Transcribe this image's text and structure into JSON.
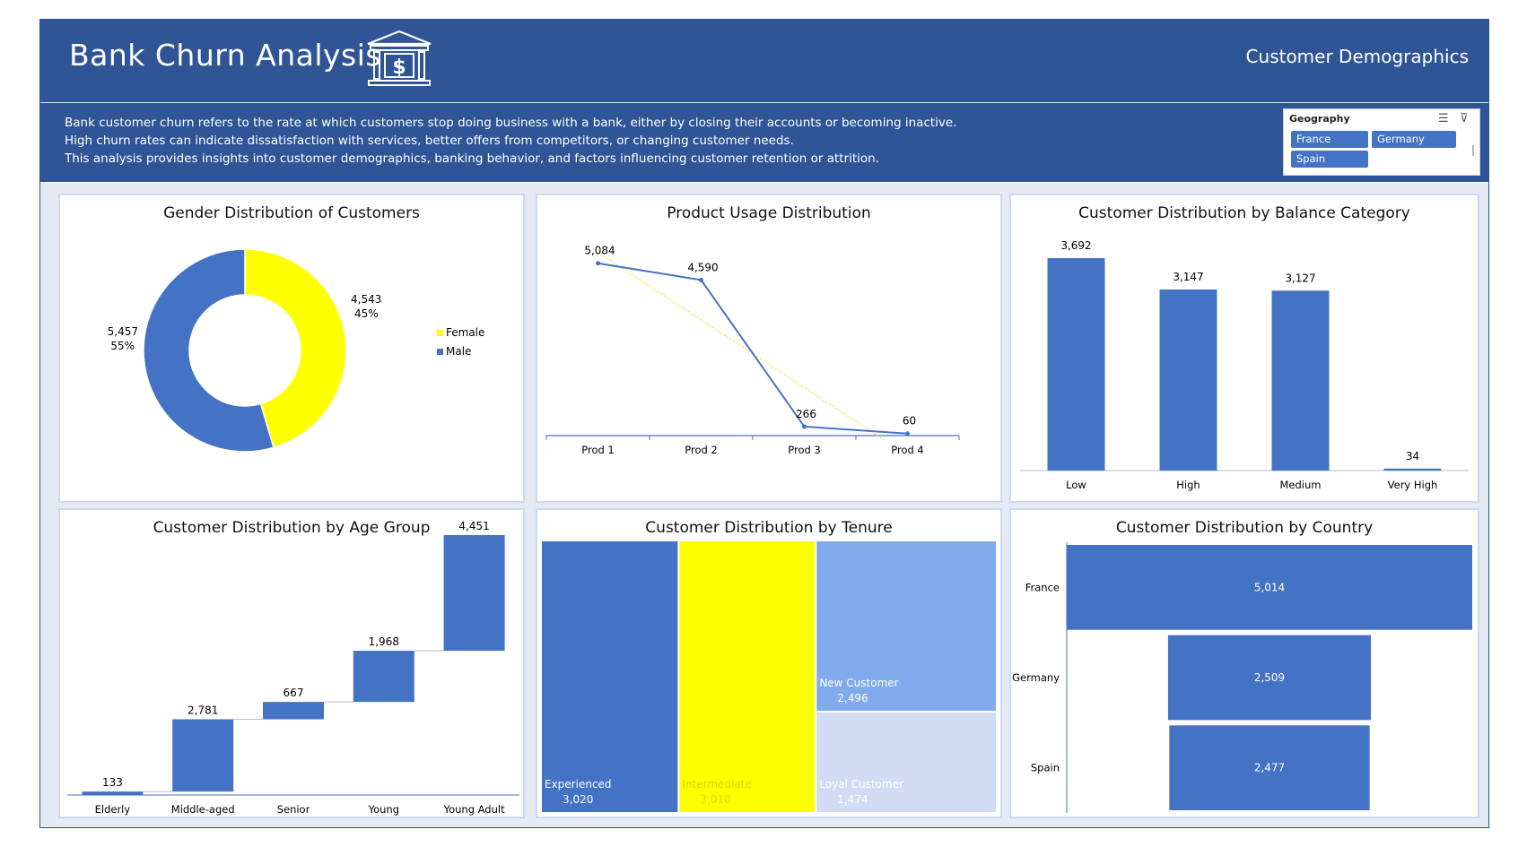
{
  "header": {
    "title": "Bank Churn Analysis",
    "subtitle": "Customer Demographics",
    "icon": "bank-dollar-icon",
    "background": "#2f5597"
  },
  "description": {
    "lines": [
      "Bank customer churn refers to the rate at which customers stop doing business with a bank, either by closing their accounts or becoming inactive.",
      "High churn rates can indicate dissatisfaction with services, better offers from competitors, or changing customer needs.",
      "This analysis provides insights into customer demographics, banking behavior, and factors influencing customer retention or attrition."
    ]
  },
  "slicer": {
    "title": "Geography",
    "options": [
      "France",
      "Germany",
      "Spain"
    ],
    "icons": [
      "multi-select-icon",
      "clear-filter-icon"
    ]
  },
  "colors": {
    "blue": "#4472c4",
    "yellow": "#ffff00",
    "light_blue": "#7faaec",
    "lighter_blue": "#d1dcf4",
    "panel_bg": "#e4e9f4"
  },
  "panels": {
    "gender": "Gender Distribution of Customers",
    "product": "Product Usage Distribution",
    "balance": "Customer Distribution by Balance Category",
    "age": "Customer Distribution by Age Group",
    "tenure": "Customer Distribution by Tenure",
    "country": "Customer Distribution by Country"
  },
  "chart_data": [
    {
      "id": "gender",
      "type": "pie",
      "title": "Gender Distribution of Customers",
      "labels": [
        "Female",
        "Male"
      ],
      "values": [
        4543,
        5457
      ],
      "value_labels": [
        "4,543",
        "5,457"
      ],
      "percent_labels": [
        "45%",
        "55%"
      ],
      "legend": "right"
    },
    {
      "id": "product",
      "type": "line",
      "title": "Product Usage Distribution",
      "categories": [
        "Prod 1",
        "Prod 2",
        "Prod 3",
        "Prod 4"
      ],
      "values": [
        5084,
        4590,
        266,
        60
      ],
      "value_labels": [
        "5,084",
        "4,590",
        "266",
        "60"
      ],
      "trendline": "linear",
      "ylim": [
        0,
        5500
      ]
    },
    {
      "id": "balance",
      "type": "bar",
      "title": "Customer Distribution by Balance Category",
      "categories": [
        "Low",
        "High",
        "Medium",
        "Very High"
      ],
      "values": [
        3692,
        3147,
        3127,
        34
      ],
      "value_labels": [
        "3,692",
        "3,147",
        "3,127",
        "34"
      ],
      "ylim": [
        0,
        3692
      ]
    },
    {
      "id": "age",
      "type": "bar",
      "title": "Customer Distribution by Age Group",
      "categories": [
        "Elderly",
        "Middle-aged",
        "Senior",
        "Young",
        "Young Adult"
      ],
      "values": [
        133,
        2781,
        667,
        1968,
        4451
      ],
      "value_labels": [
        "133",
        "2,781",
        "667",
        "1,968",
        "4,451"
      ],
      "chart_style": "waterfall",
      "ylim": [
        0,
        10000
      ]
    },
    {
      "id": "tenure",
      "type": "heatmap",
      "chart_style": "treemap",
      "title": "Customer Distribution by Tenure",
      "labels": [
        "Experienced",
        "Intermediate",
        "New Customer",
        "Loyal Customer"
      ],
      "values": [
        3020,
        3010,
        2496,
        1474
      ],
      "value_labels": [
        "3,020",
        "3,010",
        "2,496",
        "1,474"
      ]
    },
    {
      "id": "country",
      "type": "bar",
      "chart_style": "funnel",
      "title": "Customer Distribution by Country",
      "categories": [
        "France",
        "Germany",
        "Spain"
      ],
      "values": [
        5014,
        2509,
        2477
      ],
      "value_labels": [
        "5,014",
        "2,509",
        "2,477"
      ]
    }
  ]
}
